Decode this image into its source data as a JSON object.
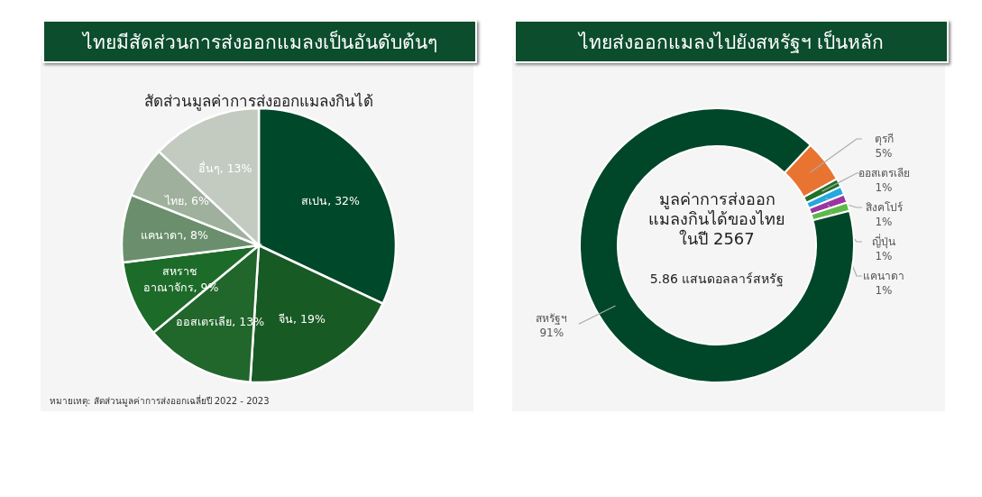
{
  "chart_data": [
    {
      "type": "pie",
      "title": "ไทยมีสัดส่วนการส่งออกแมลงเป็นอันดับต้นๆ",
      "subtitle": "สัดส่วนมูลค่าการส่งออกแมลงกินได้",
      "categories": [
        "สเปน",
        "จีน",
        "ออสเตรเลีย",
        "สหราช อาณาจักร",
        "แคนาดา",
        "ไทย",
        "อื่นๆ"
      ],
      "values": [
        32,
        19,
        13,
        9,
        8,
        6,
        13
      ],
      "colors": [
        "#00482a",
        "#185a24",
        "#21662b",
        "#1d6b28",
        "#6b8f6c",
        "#9fb09d",
        "#c3cbc1"
      ],
      "value_labels": [
        "32%",
        "19%",
        "13%",
        "9%",
        "8%",
        "6%",
        "13%"
      ],
      "annotations": [
        "หมายเหตุ: สัดส่วนมูลค่าการส่งออกเฉลี่ยปี 2022 - 2023"
      ]
    },
    {
      "type": "donut",
      "title": "ไทยส่งออกแมลงไปยังสหรัฐฯ เป็นหลัก",
      "categories": [
        "ตุรกี",
        "ออสเตรเลีย",
        "สิงคโปร์",
        "ญี่ปุ่น",
        "แคนาดา",
        "สหรัฐฯ"
      ],
      "values": [
        5,
        1,
        1,
        1,
        1,
        91
      ],
      "colors": [
        "#e97432",
        "#207028",
        "#25a7df",
        "#9b35a2",
        "#5cb94a",
        "#00472a"
      ],
      "value_labels": [
        "5%",
        "1%",
        "1%",
        "1%",
        "1%",
        "91%"
      ],
      "annotations": [
        "มูลค่าการส่งออกแมลงกินได้ของไทยในปี 2567",
        "5.86 แสนดอลลาร์สหรัฐ"
      ]
    }
  ]
}
